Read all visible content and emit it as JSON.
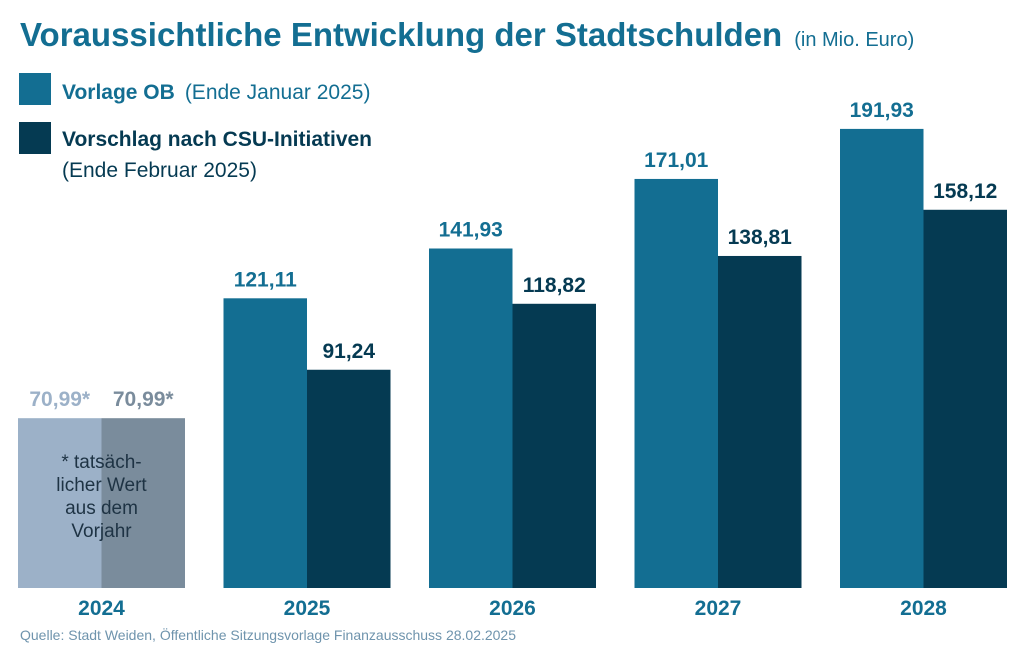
{
  "chart_data": {
    "type": "bar",
    "title": "Voraussichtliche Entwicklung der Stadtschulden",
    "subtitle": "(in Mio. Euro)",
    "categories": [
      "2024",
      "2025",
      "2026",
      "2027",
      "2028"
    ],
    "series": [
      {
        "name": "Vorlage OB",
        "name_suffix": "(Ende Januar 2025)",
        "values": [
          70.99,
          121.11,
          141.93,
          171.01,
          191.93
        ],
        "labels": [
          "70,99*",
          "121,11",
          "141,93",
          "171,01",
          "191,93"
        ],
        "color": "#136e92",
        "color_first": "#9cb1c8",
        "label_color": "#136e92",
        "label_color_first": "#9cb1c8"
      },
      {
        "name": "Vorschlag nach CSU-Initiativen",
        "name_suffix": "(Ende Februar 2025)",
        "values": [
          70.99,
          91.24,
          118.82,
          138.81,
          158.12
        ],
        "labels": [
          "70,99*",
          "91,24",
          "118,82",
          "138,81",
          "158,12"
        ],
        "color": "#053a52",
        "color_first": "#7a8c9c",
        "label_color": "#053a52",
        "label_color_first": "#7a8c9c"
      }
    ],
    "annotation": [
      "* tatsäch-",
      "licher Wert",
      "aus dem",
      "Vorjahr"
    ],
    "ylim": [
      0,
      200
    ],
    "grid": false,
    "legend_position": "top-left"
  },
  "source": "Quelle: Stadt Weiden, Öffentliche Sitzungsvorlage Finanzausschuss 28.02.2025"
}
